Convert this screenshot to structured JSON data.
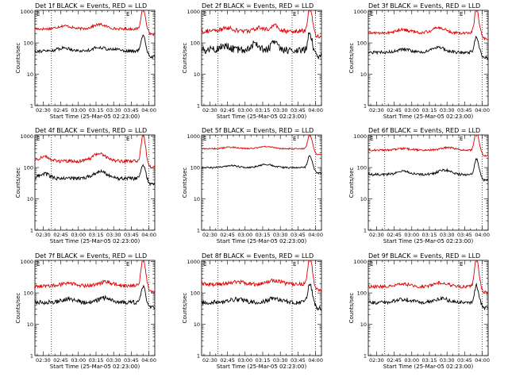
{
  "chart_data": {
    "type": "line",
    "panel_layout": "3x3 grid",
    "xlabel": "Start Time (25-Mar-05 02:23:00)",
    "ylabel": "Counts/sec",
    "x_tick_labels": [
      "02:30",
      "02:45",
      "03:00",
      "03:15",
      "03:30",
      "03:45",
      "04:00"
    ],
    "x_tick_minutes": [
      7,
      22,
      37,
      52,
      67,
      82,
      97
    ],
    "xlim_minutes": [
      0,
      102
    ],
    "y_scale": "log",
    "y_tick_labels": [
      "1",
      "10",
      "100",
      "1000"
    ],
    "y_tick_values": [
      1,
      10,
      100,
      1000
    ],
    "ylim": [
      1,
      1100
    ],
    "legend": "BLACK = Events, RED = LLD",
    "colors": {
      "events": "#000000",
      "lld": "#dd0000"
    },
    "series_names": [
      "Events",
      "LLD"
    ],
    "panels": [
      {
        "title": "Det 1f BLACK = Events, RED = LLD",
        "flag": "E",
        "vlines_minutes": [
          14,
          77,
          97
        ],
        "events": {
          "base": 55,
          "bumps": [
            [
              25,
              8,
              0.1
            ],
            [
              55,
              8,
              0.12
            ],
            [
              70,
              5,
              0.06
            ]
          ],
          "noise": 0.05,
          "peak": 180
        },
        "lld": {
          "base": 280,
          "bumps": [
            [
              25,
              8,
              0.1
            ],
            [
              55,
              8,
              0.14
            ]
          ],
          "noise": 0.04,
          "peak": 1400
        }
      },
      {
        "title": "Det 2f BLACK = Events, RED = LLD",
        "flag": "E",
        "vlines_minutes": [
          14,
          77,
          97
        ],
        "events": {
          "base": 60,
          "bumps": [
            [
              20,
              6,
              0.12
            ],
            [
              45,
              5,
              0.2
            ],
            [
              62,
              4,
              0.25
            ]
          ],
          "noise": 0.12,
          "peak": 220
        },
        "lld": {
          "base": 240,
          "bumps": [
            [
              22,
              6,
              0.1
            ],
            [
              50,
              6,
              0.1
            ],
            [
              62,
              4,
              0.18
            ]
          ],
          "noise": 0.07,
          "peak": 1500
        }
      },
      {
        "title": "Det 3f BLACK = Events, RED = LLD",
        "flag": "E",
        "vlines_minutes": [
          14,
          77,
          97
        ],
        "events": {
          "base": 50,
          "bumps": [
            [
              30,
              8,
              0.1
            ],
            [
              60,
              8,
              0.15
            ]
          ],
          "noise": 0.05,
          "peak": 160
        },
        "lld": {
          "base": 210,
          "bumps": [
            [
              30,
              8,
              0.1
            ],
            [
              60,
              8,
              0.16
            ]
          ],
          "noise": 0.05,
          "peak": 1300
        }
      },
      {
        "title": "Det 4f BLACK = Events, RED = LLD",
        "flag": "E",
        "vlines_minutes": [
          14,
          77,
          97
        ],
        "events": {
          "base": 45,
          "bumps": [
            [
              8,
              6,
              0.15
            ],
            [
              55,
              8,
              0.22
            ]
          ],
          "noise": 0.06,
          "peak": 130
        },
        "lld": {
          "base": 160,
          "bumps": [
            [
              8,
              6,
              0.15
            ],
            [
              55,
              8,
              0.24
            ]
          ],
          "noise": 0.05,
          "peak": 1200
        }
      },
      {
        "title": "Det 5f BLACK = Events, RED = LLD",
        "flag": "E",
        "vlines_minutes": [
          14,
          77,
          97
        ],
        "events": {
          "base": 100,
          "bumps": [
            [
              25,
              8,
              0.06
            ],
            [
              55,
              8,
              0.1
            ]
          ],
          "noise": 0.025,
          "peak": 250
        },
        "lld": {
          "base": 400,
          "bumps": [
            [
              25,
              8,
              0.05
            ],
            [
              55,
              8,
              0.07
            ]
          ],
          "noise": 0.02,
          "peak": 1200
        }
      },
      {
        "title": "Det 6f BLACK = Events, RED = LLD",
        "flag": "E",
        "vlines_minutes": [
          14,
          77,
          97
        ],
        "events": {
          "base": 60,
          "bumps": [
            [
              30,
              8,
              0.1
            ],
            [
              65,
              8,
              0.14
            ]
          ],
          "noise": 0.04,
          "peak": 190
        },
        "lld": {
          "base": 360,
          "bumps": [
            [
              30,
              8,
              0.05
            ],
            [
              68,
              8,
              0.08
            ]
          ],
          "noise": 0.03,
          "peak": 1500
        }
      },
      {
        "title": "Det 7f BLACK = Events, RED = LLD",
        "flag": "E",
        "vlines_minutes": [
          14,
          77,
          97
        ],
        "events": {
          "base": 50,
          "bumps": [
            [
              28,
              8,
              0.1
            ],
            [
              60,
              8,
              0.14
            ]
          ],
          "noise": 0.07,
          "peak": 170
        },
        "lld": {
          "base": 170,
          "bumps": [
            [
              28,
              8,
              0.08
            ],
            [
              60,
              8,
              0.12
            ]
          ],
          "noise": 0.06,
          "peak": 1400
        }
      },
      {
        "title": "Det 8f BLACK = Events, RED = LLD",
        "flag": "E",
        "vlines_minutes": [
          14,
          77,
          97
        ],
        "events": {
          "base": 50,
          "bumps": [
            [
              30,
              8,
              0.1
            ],
            [
              62,
              8,
              0.12
            ]
          ],
          "noise": 0.07,
          "peak": 200
        },
        "lld": {
          "base": 190,
          "bumps": [
            [
              30,
              8,
              0.08
            ],
            [
              62,
              8,
              0.12
            ]
          ],
          "noise": 0.06,
          "peak": 1600
        }
      },
      {
        "title": "Det 9f BLACK = Events, RED = LLD",
        "flag": "E",
        "vlines_minutes": [
          14,
          77,
          97
        ],
        "events": {
          "base": 50,
          "bumps": [
            [
              30,
              8,
              0.1
            ],
            [
              62,
              8,
              0.13
            ]
          ],
          "noise": 0.06,
          "peak": 170
        },
        "lld": {
          "base": 160,
          "bumps": [
            [
              30,
              8,
              0.08
            ],
            [
              62,
              8,
              0.13
            ]
          ],
          "noise": 0.05,
          "peak": 1300
        }
      }
    ]
  }
}
